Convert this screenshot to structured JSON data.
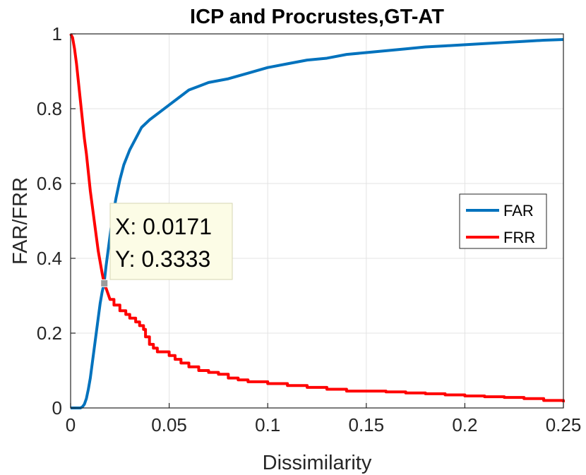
{
  "chart_data": {
    "type": "line",
    "title": "ICP and Procrustes,GT-AT",
    "xlabel": "Dissimilarity",
    "ylabel": "FAR/FRR",
    "xlim": [
      0,
      0.25
    ],
    "ylim": [
      0,
      1
    ],
    "grid": true,
    "legend_position": "right",
    "x_ticks": [
      0,
      0.05,
      0.1,
      0.15,
      0.2,
      0.25
    ],
    "x_tick_labels": [
      "0",
      "0.05",
      "0.1",
      "0.15",
      "0.2",
      "0.25"
    ],
    "y_ticks": [
      0,
      0.2,
      0.4,
      0.6,
      0.8,
      1
    ],
    "y_tick_labels": [
      "0",
      "0.2",
      "0.4",
      "0.6",
      "0.8",
      "1"
    ],
    "series": [
      {
        "name": "FAR",
        "color": "#0072BD",
        "x": [
          0,
          0.005,
          0.006,
          0.007,
          0.008,
          0.009,
          0.01,
          0.011,
          0.012,
          0.013,
          0.014,
          0.015,
          0.016,
          0.017,
          0.018,
          0.019,
          0.02,
          0.021,
          0.022,
          0.023,
          0.025,
          0.027,
          0.03,
          0.033,
          0.036,
          0.04,
          0.045,
          0.05,
          0.055,
          0.06,
          0.065,
          0.07,
          0.075,
          0.08,
          0.09,
          0.1,
          0.11,
          0.12,
          0.13,
          0.14,
          0.15,
          0.16,
          0.17,
          0.18,
          0.19,
          0.2,
          0.21,
          0.22,
          0.23,
          0.24,
          0.25
        ],
        "values": [
          0,
          0,
          0.003,
          0.01,
          0.025,
          0.05,
          0.08,
          0.12,
          0.16,
          0.2,
          0.24,
          0.28,
          0.31,
          0.3333,
          0.38,
          0.42,
          0.46,
          0.5,
          0.53,
          0.56,
          0.61,
          0.65,
          0.69,
          0.72,
          0.75,
          0.77,
          0.79,
          0.81,
          0.83,
          0.85,
          0.86,
          0.87,
          0.875,
          0.88,
          0.895,
          0.91,
          0.92,
          0.93,
          0.935,
          0.945,
          0.95,
          0.955,
          0.96,
          0.965,
          0.968,
          0.971,
          0.974,
          0.977,
          0.98,
          0.983,
          0.985
        ]
      },
      {
        "name": "FRR",
        "color": "#FF0000",
        "x": [
          0,
          0.001,
          0.002,
          0.003,
          0.004,
          0.005,
          0.006,
          0.007,
          0.008,
          0.009,
          0.01,
          0.011,
          0.012,
          0.013,
          0.014,
          0.015,
          0.016,
          0.017,
          0.018,
          0.02,
          0.022,
          0.025,
          0.028,
          0.03,
          0.033,
          0.035,
          0.037,
          0.038,
          0.04,
          0.042,
          0.044,
          0.046,
          0.05,
          0.053,
          0.056,
          0.06,
          0.065,
          0.07,
          0.075,
          0.08,
          0.085,
          0.09,
          0.1,
          0.11,
          0.12,
          0.13,
          0.14,
          0.15,
          0.16,
          0.17,
          0.18,
          0.19,
          0.2,
          0.21,
          0.22,
          0.23,
          0.24,
          0.25
        ],
        "values": [
          1,
          0.99,
          0.96,
          0.92,
          0.87,
          0.82,
          0.77,
          0.72,
          0.68,
          0.63,
          0.58,
          0.54,
          0.5,
          0.46,
          0.42,
          0.39,
          0.36,
          0.3333,
          0.32,
          0.29,
          0.275,
          0.26,
          0.25,
          0.24,
          0.23,
          0.22,
          0.21,
          0.19,
          0.17,
          0.16,
          0.15,
          0.15,
          0.14,
          0.13,
          0.12,
          0.11,
          0.1,
          0.095,
          0.09,
          0.08,
          0.075,
          0.07,
          0.065,
          0.06,
          0.055,
          0.05,
          0.045,
          0.045,
          0.043,
          0.04,
          0.038,
          0.035,
          0.032,
          0.03,
          0.028,
          0.025,
          0.02,
          0.015
        ]
      }
    ],
    "datatip": {
      "x": 0.0171,
      "y": 0.3333,
      "line_x": "X: 0.0171",
      "line_y": "Y: 0.3333"
    }
  }
}
